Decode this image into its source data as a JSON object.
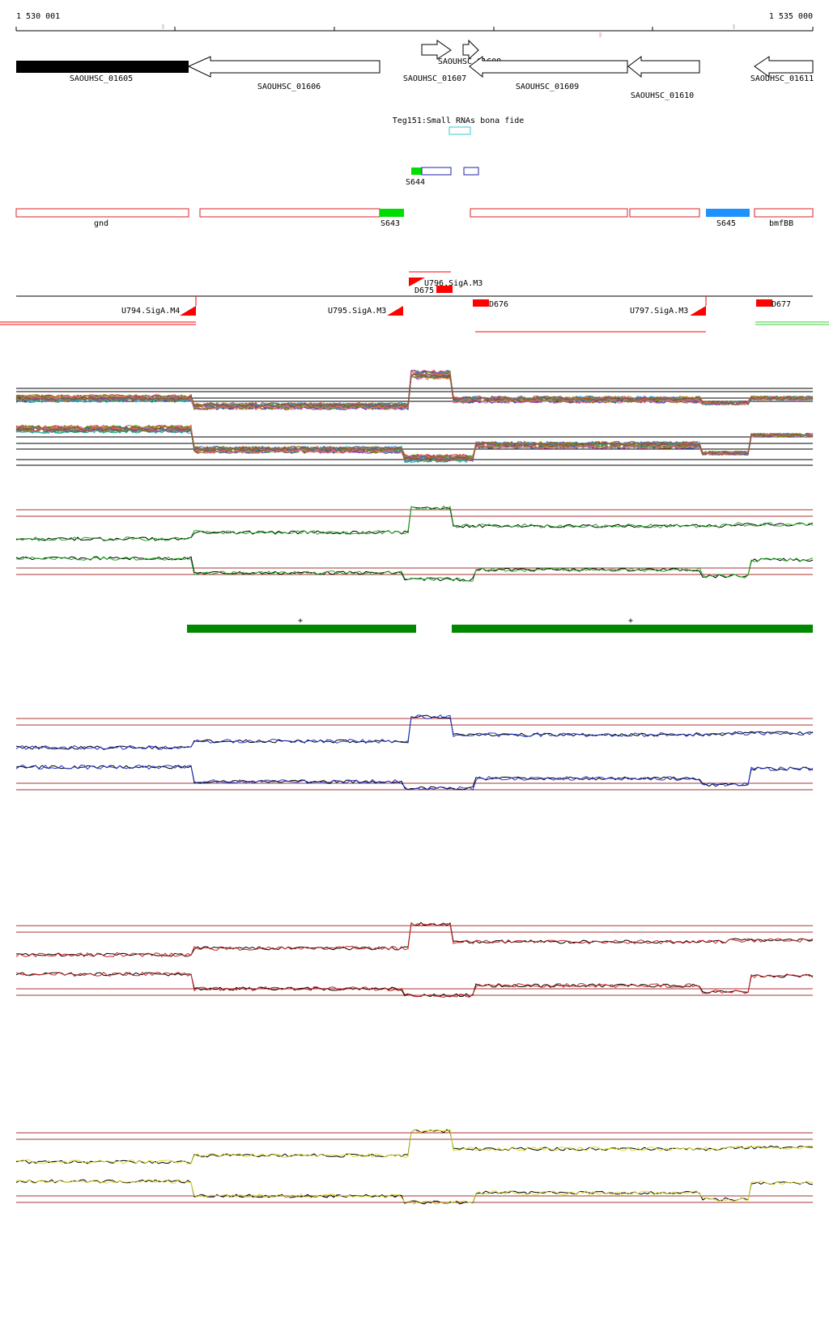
{
  "ruler": {
    "start_label": "1 530 001",
    "end_label": "1 535 000"
  },
  "genes": [
    {
      "label": "SAOUHSC_01605",
      "strand": "+",
      "filled": true
    },
    {
      "label": "SAOUHSC_01606",
      "strand": "-"
    },
    {
      "label": "SAOUHSC_01607",
      "strand": "+"
    },
    {
      "label": "SAOUHSC_01608",
      "strand": "+"
    },
    {
      "label": "SAOUHSC_01609",
      "strand": "-"
    },
    {
      "label": "SAOUHSC_01610",
      "strand": "-"
    },
    {
      "label": "SAOUHSC_01611",
      "strand": "-"
    }
  ],
  "small_rna": {
    "label": "Teg151:Small RNAs bona fide",
    "color": "#33cccc"
  },
  "segment_track_1": [
    {
      "label": "S644",
      "color": "#00dd00"
    }
  ],
  "segment_track_2": [
    {
      "label": "gnd"
    },
    {
      "label": "S643",
      "color": "#00dd00"
    },
    {
      "label": "S645",
      "color": "#1e90ff"
    },
    {
      "label": "bmfBB"
    }
  ],
  "promoters": [
    {
      "label": "U794.SigA.M4"
    },
    {
      "label": "U795.SigA.M3"
    },
    {
      "label": "U796.SigA.M3"
    },
    {
      "label": "U797.SigA.M3"
    }
  ],
  "terminators": [
    {
      "label": "D675"
    },
    {
      "label": "D676"
    },
    {
      "label": "D677"
    }
  ],
  "operon_track": [
    {
      "strand_label": "+"
    },
    {
      "strand_label": "+"
    }
  ],
  "expression_panels": [
    {
      "name": "multi-condition",
      "color": "multicolor"
    },
    {
      "name": "green",
      "color": "#22aa22"
    },
    {
      "name": "blue",
      "color": "#2233cc"
    },
    {
      "name": "red",
      "color": "#cc2222"
    },
    {
      "name": "yellow",
      "color": "#dddd33"
    }
  ],
  "colors": {
    "gene_outline": "#000000",
    "segment_outline": "#dd2222",
    "feature_red": "#ff0000",
    "operon_green": "#008800",
    "threshold_line": "#aa3333"
  }
}
